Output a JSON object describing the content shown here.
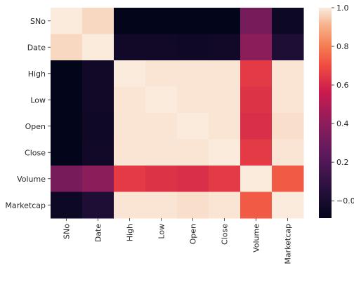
{
  "chart_data": {
    "type": "heatmap",
    "title": "",
    "xlabel": "",
    "ylabel": "",
    "x_categories": [
      "SNo",
      "Date",
      "High",
      "Low",
      "Open",
      "Close",
      "Volume",
      "Marketcap"
    ],
    "y_categories": [
      "SNo",
      "Date",
      "High",
      "Low",
      "Open",
      "Close",
      "Volume",
      "Marketcap"
    ],
    "values": [
      [
        1.0,
        0.97,
        -0.09,
        -0.09,
        -0.09,
        -0.09,
        0.33,
        -0.05
      ],
      [
        0.97,
        1.0,
        -0.03,
        -0.03,
        -0.04,
        -0.03,
        0.4,
        0.02
      ],
      [
        -0.09,
        -0.03,
        1.0,
        0.99,
        0.99,
        0.99,
        0.65,
        0.99
      ],
      [
        -0.09,
        -0.03,
        0.99,
        1.0,
        0.99,
        0.99,
        0.63,
        0.99
      ],
      [
        -0.09,
        -0.04,
        0.99,
        0.99,
        1.0,
        0.99,
        0.62,
        0.98
      ],
      [
        -0.09,
        -0.03,
        0.99,
        0.99,
        0.99,
        1.0,
        0.65,
        0.99
      ],
      [
        0.33,
        0.4,
        0.65,
        0.63,
        0.62,
        0.65,
        1.0,
        0.73
      ],
      [
        -0.05,
        0.02,
        0.99,
        0.99,
        0.98,
        0.99,
        0.73,
        1.0
      ]
    ],
    "colorbar": {
      "colormap": "rocket",
      "vmin": -0.09,
      "vmax": 1.0,
      "ticks": [
        -0.0,
        0.2,
        0.4,
        0.6,
        0.8,
        1.0
      ],
      "tick_labels": [
        "−0.0",
        "0.2",
        "0.4",
        "0.6",
        "0.8",
        "1.0"
      ]
    }
  }
}
